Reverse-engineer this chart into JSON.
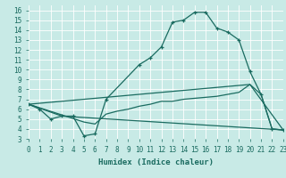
{
  "xlabel": "Humidex (Indice chaleur)",
  "bg_color": "#c8eae6",
  "line_color": "#1a6b60",
  "grid_color": "#ffffff",
  "xlim": [
    0,
    23
  ],
  "ylim": [
    3,
    16.5
  ],
  "xticks": [
    0,
    1,
    2,
    3,
    4,
    5,
    6,
    7,
    8,
    9,
    10,
    11,
    12,
    13,
    14,
    15,
    16,
    17,
    18,
    19,
    20,
    21,
    22,
    23
  ],
  "yticks": [
    3,
    4,
    5,
    6,
    7,
    8,
    9,
    10,
    11,
    12,
    13,
    14,
    15,
    16
  ],
  "line1_x": [
    0,
    1,
    2,
    3,
    4,
    5,
    6,
    7,
    10,
    11,
    12,
    13,
    14,
    15,
    16,
    17,
    18,
    19,
    20,
    21,
    22,
    23
  ],
  "line1_y": [
    6.5,
    6.0,
    5.0,
    5.3,
    5.3,
    3.3,
    3.5,
    7.0,
    10.5,
    11.2,
    12.3,
    14.8,
    15.0,
    15.8,
    15.8,
    14.2,
    13.8,
    13.0,
    9.8,
    7.5,
    4.0,
    3.9
  ],
  "line2_x": [
    0,
    3,
    23
  ],
  "line2_y": [
    6.5,
    5.3,
    3.9
  ],
  "line3_x": [
    0,
    20,
    23
  ],
  "line3_y": [
    6.5,
    8.5,
    3.9
  ],
  "line4_x": [
    0,
    5,
    6,
    7,
    8,
    9,
    10,
    11,
    12,
    13,
    14,
    15,
    16,
    17,
    18,
    19,
    20,
    21,
    22,
    23
  ],
  "line4_y": [
    6.5,
    4.7,
    4.5,
    5.5,
    5.8,
    6.0,
    6.3,
    6.5,
    6.8,
    6.8,
    7.0,
    7.1,
    7.2,
    7.3,
    7.5,
    7.7,
    8.5,
    7.5,
    4.0,
    3.9
  ]
}
